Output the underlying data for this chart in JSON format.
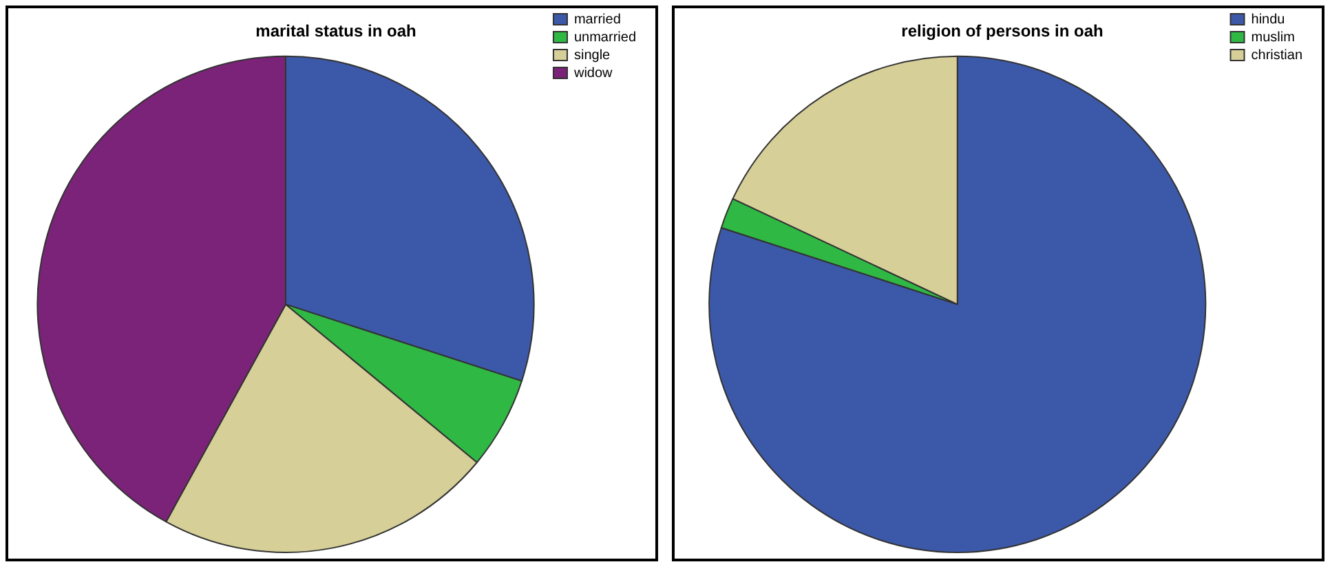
{
  "chart_data": [
    {
      "type": "pie",
      "title": "marital status in oah",
      "categories": [
        "married",
        "unmarried",
        "single",
        "widow"
      ],
      "values": [
        30,
        6,
        22,
        42
      ],
      "colors": [
        "#3c58a8",
        "#2fb844",
        "#d6cf98",
        "#7b2378"
      ],
      "legend": "top right"
    },
    {
      "type": "pie",
      "title": "religion of persons in oah",
      "categories": [
        "hindu",
        "muslim",
        "christian"
      ],
      "values": [
        80,
        2,
        18
      ],
      "colors": [
        "#3c58a8",
        "#2fb844",
        "#d6cf98"
      ],
      "legend": "top right"
    }
  ]
}
